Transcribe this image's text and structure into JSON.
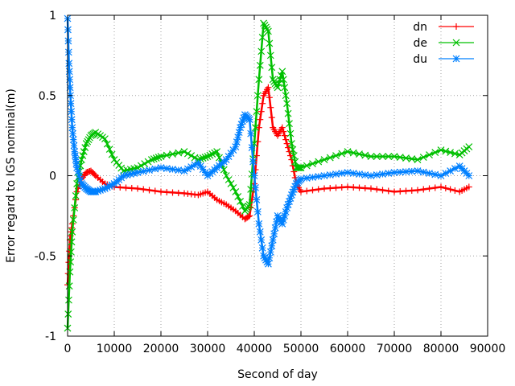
{
  "chart_data": {
    "type": "line",
    "title": "",
    "xlabel": "Second of day",
    "ylabel": "Error regard to IGS nominal(m)",
    "xlim": [
      0,
      90000
    ],
    "ylim": [
      -1,
      1
    ],
    "x_ticks": [
      0,
      10000,
      20000,
      30000,
      40000,
      50000,
      60000,
      70000,
      80000,
      90000
    ],
    "y_ticks": [
      -1,
      -0.5,
      0,
      0.5,
      1
    ],
    "x_tick_labels": [
      "0",
      "10000",
      "20000",
      "30000",
      "40000",
      "50000",
      "60000",
      "70000",
      "80000",
      "90000"
    ],
    "y_tick_labels": [
      "-1",
      "-0.5",
      "0",
      "0.5",
      "1"
    ],
    "grid": true,
    "legend_position": "top-right",
    "series": [
      {
        "name": "dn",
        "color": "#ff0000",
        "marker": "plus",
        "x": [
          0,
          500,
          1000,
          2000,
          3000,
          4000,
          5000,
          6000,
          8000,
          10000,
          15000,
          20000,
          25000,
          28000,
          30000,
          32000,
          34000,
          36000,
          38000,
          39000,
          40000,
          41000,
          42000,
          43000,
          44000,
          45000,
          46000,
          47000,
          48000,
          49000,
          50000,
          55000,
          60000,
          65000,
          70000,
          75000,
          80000,
          84000,
          86000
        ],
        "y": [
          -0.68,
          -0.4,
          -0.3,
          -0.1,
          -0.02,
          0.02,
          0.03,
          0.0,
          -0.05,
          -0.07,
          -0.08,
          -0.1,
          -0.11,
          -0.12,
          -0.1,
          -0.15,
          -0.18,
          -0.22,
          -0.27,
          -0.25,
          -0.05,
          0.3,
          0.5,
          0.55,
          0.3,
          0.25,
          0.3,
          0.2,
          0.1,
          -0.05,
          -0.1,
          -0.08,
          -0.07,
          -0.08,
          -0.1,
          -0.09,
          -0.07,
          -0.1,
          -0.07
        ]
      },
      {
        "name": "de",
        "color": "#00c000",
        "marker": "cross",
        "x": [
          0,
          500,
          1000,
          2000,
          3000,
          4000,
          5000,
          6000,
          8000,
          10000,
          12000,
          15000,
          18000,
          20000,
          25000,
          28000,
          30000,
          32000,
          34000,
          36000,
          38000,
          39000,
          40000,
          41000,
          42000,
          43000,
          44000,
          45000,
          46000,
          47000,
          48000,
          49000,
          50000,
          55000,
          60000,
          65000,
          70000,
          75000,
          80000,
          84000,
          86000
        ],
        "y": [
          -0.95,
          -0.6,
          -0.35,
          -0.05,
          0.1,
          0.2,
          0.25,
          0.27,
          0.23,
          0.1,
          0.03,
          0.05,
          0.1,
          0.12,
          0.15,
          0.1,
          0.12,
          0.15,
          0.0,
          -0.1,
          -0.22,
          -0.18,
          0.2,
          0.6,
          0.95,
          0.9,
          0.6,
          0.55,
          0.65,
          0.45,
          0.2,
          0.05,
          0.05,
          0.1,
          0.15,
          0.12,
          0.12,
          0.1,
          0.16,
          0.13,
          0.18
        ]
      },
      {
        "name": "du",
        "color": "#0080ff",
        "marker": "star",
        "x": [
          0,
          300,
          600,
          1000,
          1500,
          2000,
          3000,
          4000,
          5000,
          6000,
          8000,
          10000,
          12000,
          15000,
          20000,
          25000,
          28000,
          30000,
          32000,
          34000,
          36000,
          37000,
          38000,
          39000,
          40000,
          41000,
          42000,
          43000,
          44000,
          45000,
          46000,
          47000,
          48000,
          49000,
          50000,
          55000,
          60000,
          65000,
          70000,
          75000,
          80000,
          84000,
          86000
        ],
        "y": [
          0.98,
          0.7,
          0.5,
          0.3,
          0.15,
          0.05,
          -0.05,
          -0.08,
          -0.1,
          -0.1,
          -0.08,
          -0.05,
          0.0,
          0.02,
          0.05,
          0.03,
          0.08,
          0.0,
          0.05,
          0.1,
          0.18,
          0.3,
          0.38,
          0.35,
          0.0,
          -0.3,
          -0.5,
          -0.55,
          -0.4,
          -0.25,
          -0.3,
          -0.2,
          -0.12,
          -0.05,
          -0.02,
          0.0,
          0.02,
          0.0,
          0.02,
          0.03,
          0.0,
          0.06,
          0.0
        ]
      }
    ]
  }
}
